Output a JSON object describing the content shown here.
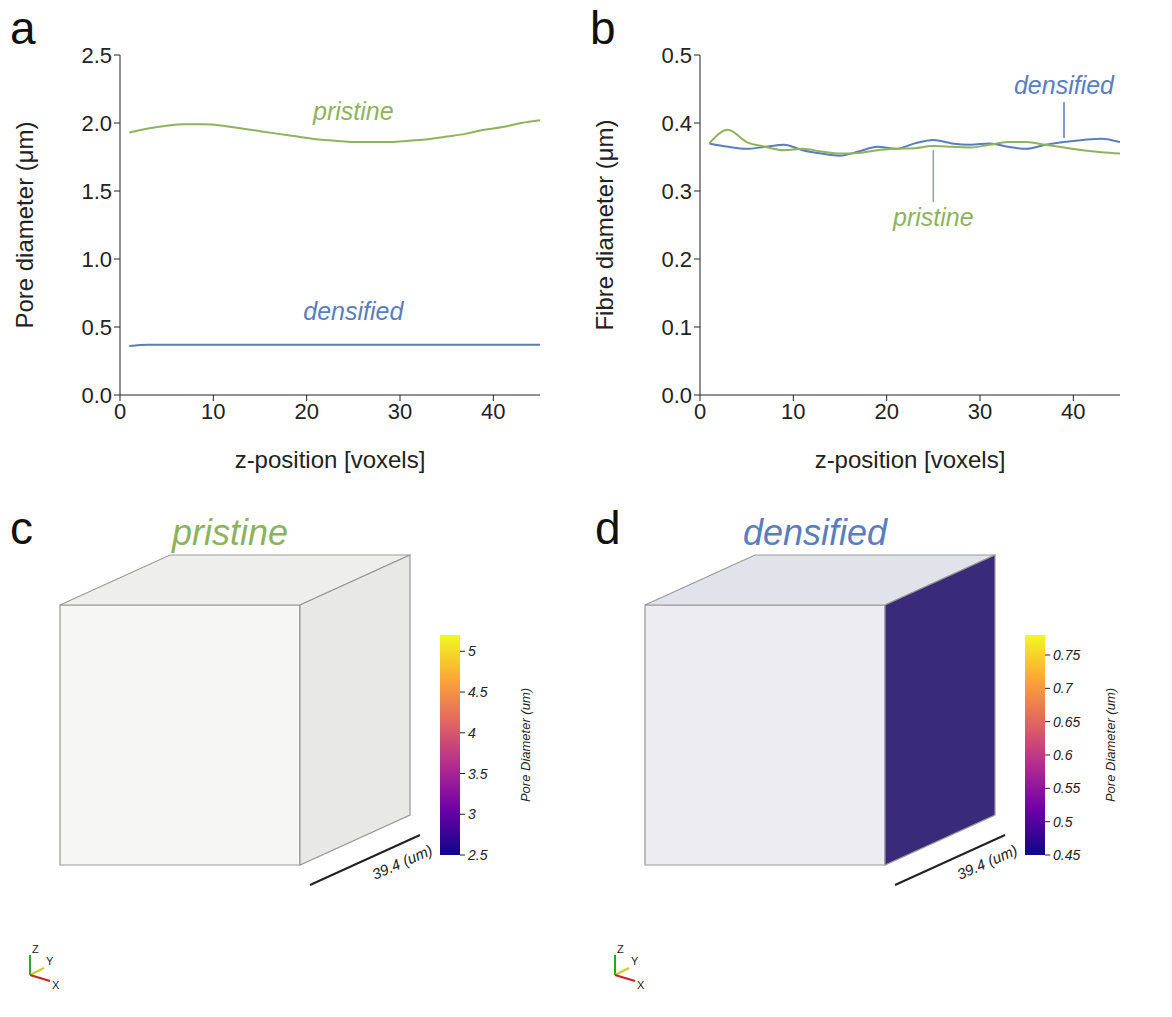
{
  "chart_data": [
    {
      "panel": "a",
      "type": "line",
      "x_label": "z-position [voxels]",
      "y_label": "Pore diameter (μm)",
      "x": [
        1,
        3,
        5,
        7,
        9,
        11,
        13,
        15,
        17,
        19,
        21,
        23,
        25,
        27,
        29,
        31,
        33,
        35,
        37,
        39,
        41,
        43,
        45
      ],
      "series": [
        {
          "name": "pristine",
          "color": "#8db35c",
          "values": [
            1.93,
            1.96,
            1.98,
            1.99,
            1.99,
            1.98,
            1.96,
            1.94,
            1.92,
            1.9,
            1.88,
            1.87,
            1.86,
            1.86,
            1.86,
            1.87,
            1.88,
            1.9,
            1.92,
            1.95,
            1.97,
            2.0,
            2.02
          ]
        },
        {
          "name": "densified",
          "color": "#5a7dbd",
          "values": [
            0.36,
            0.37,
            0.37,
            0.37,
            0.37,
            0.37,
            0.37,
            0.37,
            0.37,
            0.37,
            0.37,
            0.37,
            0.37,
            0.37,
            0.37,
            0.37,
            0.37,
            0.37,
            0.37,
            0.37,
            0.37,
            0.37,
            0.37
          ]
        }
      ],
      "xlim": [
        0,
        45
      ],
      "xticks": [
        0,
        10,
        20,
        30,
        40
      ],
      "ylim": [
        0,
        2.5
      ],
      "yticks": [
        {
          "value": 0,
          "label": "0.0"
        },
        0.5,
        {
          "value": 1,
          "label": "1.0"
        },
        1.5,
        {
          "value": 2,
          "label": "2.0"
        },
        2.5
      ],
      "grid": false
    },
    {
      "panel": "b",
      "type": "line",
      "x_label": "z-position [voxels]",
      "y_label": "Fibre diameter (μm)",
      "x": [
        1,
        3,
        5,
        7,
        9,
        11,
        13,
        15,
        17,
        19,
        21,
        23,
        25,
        27,
        29,
        31,
        33,
        35,
        37,
        39,
        41,
        43,
        45
      ],
      "series": [
        {
          "name": "densified",
          "color": "#5a7dbd",
          "values": [
            0.37,
            0.365,
            0.362,
            0.365,
            0.368,
            0.36,
            0.355,
            0.352,
            0.358,
            0.365,
            0.362,
            0.37,
            0.375,
            0.37,
            0.368,
            0.37,
            0.365,
            0.362,
            0.368,
            0.372,
            0.375,
            0.377,
            0.372
          ]
        },
        {
          "name": "pristine",
          "color": "#8db35c",
          "values": [
            0.37,
            0.39,
            0.372,
            0.365,
            0.36,
            0.362,
            0.358,
            0.355,
            0.356,
            0.36,
            0.362,
            0.363,
            0.366,
            0.365,
            0.364,
            0.368,
            0.372,
            0.372,
            0.368,
            0.364,
            0.36,
            0.357,
            0.355
          ]
        }
      ],
      "xlim": [
        0,
        45
      ],
      "xticks": [
        0,
        10,
        20,
        30,
        40
      ],
      "ylim": [
        0,
        0.5
      ],
      "yticks": [
        {
          "value": 0,
          "label": "0.0"
        },
        0.1,
        0.2,
        0.3,
        0.4,
        0.5
      ],
      "grid": false
    }
  ],
  "renderings": [
    {
      "panel": "c",
      "title": "pristine",
      "title_color": "#8db35c",
      "colorbar_label": "Pore Diameter (um)",
      "colorbar_range": [
        2.5,
        5.2
      ],
      "colorbar_ticks": [
        2.5,
        3,
        3.5,
        4,
        4.5,
        5
      ],
      "scale_bar": "39.4 (um)",
      "axes": [
        "Z",
        "Y",
        "X"
      ]
    },
    {
      "panel": "d",
      "title": "densified",
      "title_color": "#5a7dbd",
      "colorbar_label": "Pore Diameter (um)",
      "colorbar_range": [
        0.45,
        0.78
      ],
      "colorbar_ticks": [
        0.45,
        0.5,
        0.55,
        0.6,
        0.65,
        0.7,
        0.75
      ],
      "scale_bar": "39.4 (um)",
      "axes": [
        "Z",
        "Y",
        "X"
      ]
    }
  ]
}
